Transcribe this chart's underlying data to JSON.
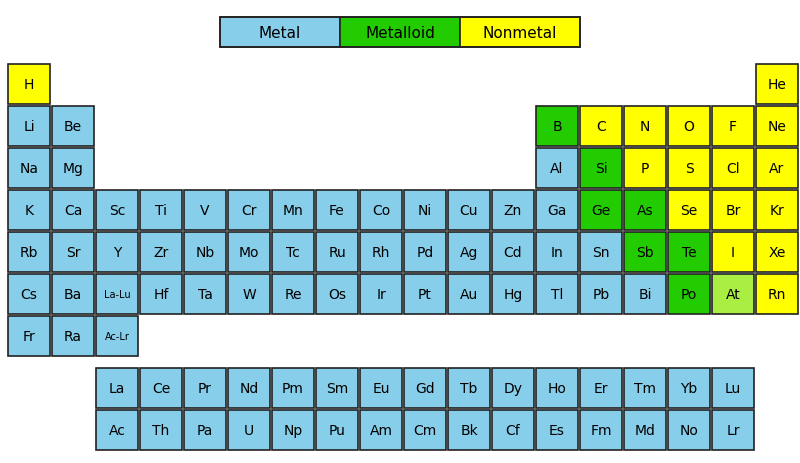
{
  "metal_color": "#87CEEB",
  "metalloid_color": "#22CC00",
  "nonmetal_color": "#FFFF00",
  "at_color": "#AAEE44",
  "background": "#FFFFFF",
  "border_color": "#222222",
  "text_color": "#000000",
  "elements": [
    {
      "symbol": "H",
      "row": 0,
      "col": 0,
      "type": "nonmetal"
    },
    {
      "symbol": "He",
      "row": 0,
      "col": 17,
      "type": "nonmetal"
    },
    {
      "symbol": "Li",
      "row": 1,
      "col": 0,
      "type": "metal"
    },
    {
      "symbol": "Be",
      "row": 1,
      "col": 1,
      "type": "metal"
    },
    {
      "symbol": "B",
      "row": 1,
      "col": 12,
      "type": "metalloid"
    },
    {
      "symbol": "C",
      "row": 1,
      "col": 13,
      "type": "nonmetal"
    },
    {
      "symbol": "N",
      "row": 1,
      "col": 14,
      "type": "nonmetal"
    },
    {
      "symbol": "O",
      "row": 1,
      "col": 15,
      "type": "nonmetal"
    },
    {
      "symbol": "F",
      "row": 1,
      "col": 16,
      "type": "nonmetal"
    },
    {
      "symbol": "Ne",
      "row": 1,
      "col": 17,
      "type": "nonmetal"
    },
    {
      "symbol": "Na",
      "row": 2,
      "col": 0,
      "type": "metal"
    },
    {
      "symbol": "Mg",
      "row": 2,
      "col": 1,
      "type": "metal"
    },
    {
      "symbol": "Al",
      "row": 2,
      "col": 12,
      "type": "metal"
    },
    {
      "symbol": "Si",
      "row": 2,
      "col": 13,
      "type": "metalloid"
    },
    {
      "symbol": "P",
      "row": 2,
      "col": 14,
      "type": "nonmetal"
    },
    {
      "symbol": "S",
      "row": 2,
      "col": 15,
      "type": "nonmetal"
    },
    {
      "symbol": "Cl",
      "row": 2,
      "col": 16,
      "type": "nonmetal"
    },
    {
      "symbol": "Ar",
      "row": 2,
      "col": 17,
      "type": "nonmetal"
    },
    {
      "symbol": "K",
      "row": 3,
      "col": 0,
      "type": "metal"
    },
    {
      "symbol": "Ca",
      "row": 3,
      "col": 1,
      "type": "metal"
    },
    {
      "symbol": "Sc",
      "row": 3,
      "col": 2,
      "type": "metal"
    },
    {
      "symbol": "Ti",
      "row": 3,
      "col": 3,
      "type": "metal"
    },
    {
      "symbol": "V",
      "row": 3,
      "col": 4,
      "type": "metal"
    },
    {
      "symbol": "Cr",
      "row": 3,
      "col": 5,
      "type": "metal"
    },
    {
      "symbol": "Mn",
      "row": 3,
      "col": 6,
      "type": "metal"
    },
    {
      "symbol": "Fe",
      "row": 3,
      "col": 7,
      "type": "metal"
    },
    {
      "symbol": "Co",
      "row": 3,
      "col": 8,
      "type": "metal"
    },
    {
      "symbol": "Ni",
      "row": 3,
      "col": 9,
      "type": "metal"
    },
    {
      "symbol": "Cu",
      "row": 3,
      "col": 10,
      "type": "metal"
    },
    {
      "symbol": "Zn",
      "row": 3,
      "col": 11,
      "type": "metal"
    },
    {
      "symbol": "Ga",
      "row": 3,
      "col": 12,
      "type": "metal"
    },
    {
      "symbol": "Ge",
      "row": 3,
      "col": 13,
      "type": "metalloid"
    },
    {
      "symbol": "As",
      "row": 3,
      "col": 14,
      "type": "metalloid"
    },
    {
      "symbol": "Se",
      "row": 3,
      "col": 15,
      "type": "nonmetal"
    },
    {
      "symbol": "Br",
      "row": 3,
      "col": 16,
      "type": "nonmetal"
    },
    {
      "symbol": "Kr",
      "row": 3,
      "col": 17,
      "type": "nonmetal"
    },
    {
      "symbol": "Rb",
      "row": 4,
      "col": 0,
      "type": "metal"
    },
    {
      "symbol": "Sr",
      "row": 4,
      "col": 1,
      "type": "metal"
    },
    {
      "symbol": "Y",
      "row": 4,
      "col": 2,
      "type": "metal"
    },
    {
      "symbol": "Zr",
      "row": 4,
      "col": 3,
      "type": "metal"
    },
    {
      "symbol": "Nb",
      "row": 4,
      "col": 4,
      "type": "metal"
    },
    {
      "symbol": "Mo",
      "row": 4,
      "col": 5,
      "type": "metal"
    },
    {
      "symbol": "Tc",
      "row": 4,
      "col": 6,
      "type": "metal"
    },
    {
      "symbol": "Ru",
      "row": 4,
      "col": 7,
      "type": "metal"
    },
    {
      "symbol": "Rh",
      "row": 4,
      "col": 8,
      "type": "metal"
    },
    {
      "symbol": "Pd",
      "row": 4,
      "col": 9,
      "type": "metal"
    },
    {
      "symbol": "Ag",
      "row": 4,
      "col": 10,
      "type": "metal"
    },
    {
      "symbol": "Cd",
      "row": 4,
      "col": 11,
      "type": "metal"
    },
    {
      "symbol": "In",
      "row": 4,
      "col": 12,
      "type": "metal"
    },
    {
      "symbol": "Sn",
      "row": 4,
      "col": 13,
      "type": "metal"
    },
    {
      "symbol": "Sb",
      "row": 4,
      "col": 14,
      "type": "metalloid"
    },
    {
      "symbol": "Te",
      "row": 4,
      "col": 15,
      "type": "metalloid"
    },
    {
      "symbol": "I",
      "row": 4,
      "col": 16,
      "type": "nonmetal"
    },
    {
      "symbol": "Xe",
      "row": 4,
      "col": 17,
      "type": "nonmetal"
    },
    {
      "symbol": "Cs",
      "row": 5,
      "col": 0,
      "type": "metal"
    },
    {
      "symbol": "Ba",
      "row": 5,
      "col": 1,
      "type": "metal"
    },
    {
      "symbol": "La-Lu",
      "row": 5,
      "col": 2,
      "type": "metal",
      "small": true
    },
    {
      "symbol": "Hf",
      "row": 5,
      "col": 3,
      "type": "metal"
    },
    {
      "symbol": "Ta",
      "row": 5,
      "col": 4,
      "type": "metal"
    },
    {
      "symbol": "W",
      "row": 5,
      "col": 5,
      "type": "metal"
    },
    {
      "symbol": "Re",
      "row": 5,
      "col": 6,
      "type": "metal"
    },
    {
      "symbol": "Os",
      "row": 5,
      "col": 7,
      "type": "metal"
    },
    {
      "symbol": "Ir",
      "row": 5,
      "col": 8,
      "type": "metal"
    },
    {
      "symbol": "Pt",
      "row": 5,
      "col": 9,
      "type": "metal"
    },
    {
      "symbol": "Au",
      "row": 5,
      "col": 10,
      "type": "metal"
    },
    {
      "symbol": "Hg",
      "row": 5,
      "col": 11,
      "type": "metal"
    },
    {
      "symbol": "Tl",
      "row": 5,
      "col": 12,
      "type": "metal"
    },
    {
      "symbol": "Pb",
      "row": 5,
      "col": 13,
      "type": "metal"
    },
    {
      "symbol": "Bi",
      "row": 5,
      "col": 14,
      "type": "metal"
    },
    {
      "symbol": "Po",
      "row": 5,
      "col": 15,
      "type": "metalloid"
    },
    {
      "symbol": "At",
      "row": 5,
      "col": 16,
      "type": "at"
    },
    {
      "symbol": "Rn",
      "row": 5,
      "col": 17,
      "type": "nonmetal"
    },
    {
      "symbol": "Fr",
      "row": 6,
      "col": 0,
      "type": "metal"
    },
    {
      "symbol": "Ra",
      "row": 6,
      "col": 1,
      "type": "metal"
    },
    {
      "symbol": "Ac-Lr",
      "row": 6,
      "col": 2,
      "type": "metal",
      "small": true
    },
    {
      "symbol": "La",
      "row": 8,
      "col": 2,
      "type": "metal"
    },
    {
      "symbol": "Ce",
      "row": 8,
      "col": 3,
      "type": "metal"
    },
    {
      "symbol": "Pr",
      "row": 8,
      "col": 4,
      "type": "metal"
    },
    {
      "symbol": "Nd",
      "row": 8,
      "col": 5,
      "type": "metal"
    },
    {
      "symbol": "Pm",
      "row": 8,
      "col": 6,
      "type": "metal"
    },
    {
      "symbol": "Sm",
      "row": 8,
      "col": 7,
      "type": "metal"
    },
    {
      "symbol": "Eu",
      "row": 8,
      "col": 8,
      "type": "metal"
    },
    {
      "symbol": "Gd",
      "row": 8,
      "col": 9,
      "type": "metal"
    },
    {
      "symbol": "Tb",
      "row": 8,
      "col": 10,
      "type": "metal"
    },
    {
      "symbol": "Dy",
      "row": 8,
      "col": 11,
      "type": "metal"
    },
    {
      "symbol": "Ho",
      "row": 8,
      "col": 12,
      "type": "metal"
    },
    {
      "symbol": "Er",
      "row": 8,
      "col": 13,
      "type": "metal"
    },
    {
      "symbol": "Tm",
      "row": 8,
      "col": 14,
      "type": "metal"
    },
    {
      "symbol": "Yb",
      "row": 8,
      "col": 15,
      "type": "metal"
    },
    {
      "symbol": "Lu",
      "row": 8,
      "col": 16,
      "type": "metal"
    },
    {
      "symbol": "Ac",
      "row": 9,
      "col": 2,
      "type": "metal"
    },
    {
      "symbol": "Th",
      "row": 9,
      "col": 3,
      "type": "metal"
    },
    {
      "symbol": "Pa",
      "row": 9,
      "col": 4,
      "type": "metal"
    },
    {
      "symbol": "U",
      "row": 9,
      "col": 5,
      "type": "metal"
    },
    {
      "symbol": "Np",
      "row": 9,
      "col": 6,
      "type": "metal"
    },
    {
      "symbol": "Pu",
      "row": 9,
      "col": 7,
      "type": "metal"
    },
    {
      "symbol": "Am",
      "row": 9,
      "col": 8,
      "type": "metal"
    },
    {
      "symbol": "Cm",
      "row": 9,
      "col": 9,
      "type": "metal"
    },
    {
      "symbol": "Bk",
      "row": 9,
      "col": 10,
      "type": "metal"
    },
    {
      "symbol": "Cf",
      "row": 9,
      "col": 11,
      "type": "metal"
    },
    {
      "symbol": "Es",
      "row": 9,
      "col": 12,
      "type": "metal"
    },
    {
      "symbol": "Fm",
      "row": 9,
      "col": 13,
      "type": "metal"
    },
    {
      "symbol": "Md",
      "row": 9,
      "col": 14,
      "type": "metal"
    },
    {
      "symbol": "No",
      "row": 9,
      "col": 15,
      "type": "metal"
    },
    {
      "symbol": "Lr",
      "row": 9,
      "col": 16,
      "type": "metal"
    }
  ],
  "legend": [
    {
      "label": "Metal",
      "color": "#87CEEB"
    },
    {
      "label": "Metalloid",
      "color": "#22CC00"
    },
    {
      "label": "Nonmetal",
      "color": "#FFFF00"
    }
  ]
}
